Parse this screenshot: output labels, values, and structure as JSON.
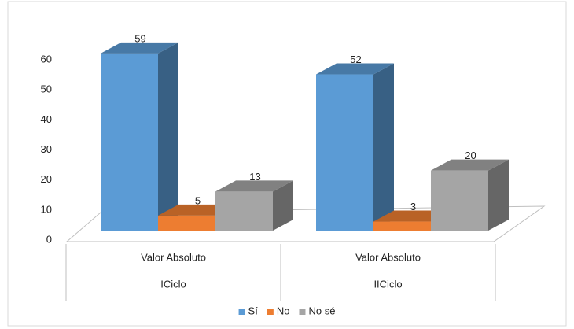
{
  "chart_data": {
    "type": "bar3d",
    "categories": [
      "Valor Absoluto",
      "Valor Absoluto"
    ],
    "groups": [
      "ICiclo",
      "IICiclo"
    ],
    "series": [
      {
        "name": "Sí",
        "color": "#5b9bd5",
        "values": [
          59,
          52
        ]
      },
      {
        "name": "No",
        "color": "#ed7d31",
        "values": [
          5,
          3
        ]
      },
      {
        "name": "No sé",
        "color": "#a5a5a5",
        "values": [
          13,
          20
        ]
      }
    ],
    "ylim": [
      0,
      60
    ],
    "yticks": [
      0,
      10,
      20,
      30,
      40,
      50,
      60
    ],
    "data_labels": true,
    "legend": "bottom"
  }
}
